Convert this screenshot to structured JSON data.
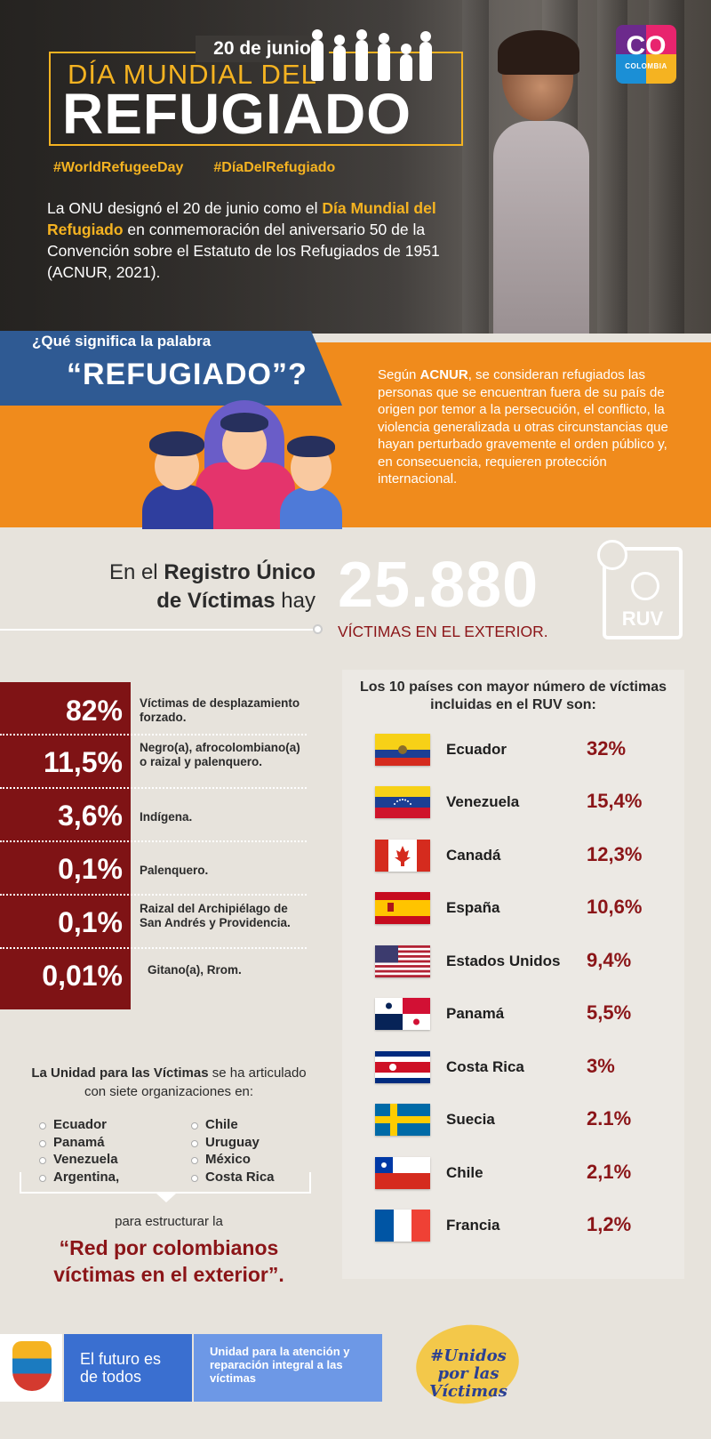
{
  "hero": {
    "date": "20 de junio",
    "title_line1": "DÍA MUNDIAL DEL",
    "title_line2": "REFUGIADO",
    "hashtags": [
      "#WorldRefugeeDay",
      "#DíaDelRefugiado"
    ],
    "intro_pre": "La ONU designó el 20 de junio como el ",
    "intro_bold": "Día Mundial del Refugiado",
    "intro_post": " en conmemoración del aniversario 50 de la Convención sobre el Estatuto de los Refugiados de 1951 (ACNUR, 2021).",
    "logo_text": "CO",
    "logo_sub": "COLOMBIA"
  },
  "definition": {
    "question_line1": "¿Qué significa la palabra",
    "question_line2": "“REFUGIADO”?",
    "text_pre": "Según ",
    "text_bold": "ACNUR",
    "text_post": ", se consideran refugiados las personas que se encuentran fuera de su país de origen por temor a la persecución, el conflicto, la violencia generalizada u otras circunstancias que hayan perturbado gravemente el orden público y, en consecuencia, requieren protección internacional."
  },
  "ruv": {
    "line1_pre": "En el ",
    "line1_bold": "Registro Único",
    "line2_bold": "de Víctimas",
    "line2_post": " hay",
    "number": "25.880",
    "caption": "VÍCTIMAS EN EL EXTERIOR.",
    "icon_label": "RUV"
  },
  "stats": [
    {
      "pct": "82%",
      "desc": "Víctimas de desplazamiento forzado."
    },
    {
      "pct": "11,5%",
      "desc": "Negro(a), afrocolombiano(a) o raizal y palenquero."
    },
    {
      "pct": "3,6%",
      "desc": "Indígena."
    },
    {
      "pct": "0,1%",
      "desc": "Palenquero."
    },
    {
      "pct": "0,1%",
      "desc": "Raizal del Archipiélago de San Andrés y Providencia."
    },
    {
      "pct": "0,01%",
      "desc": "Gitano(a), Rrom."
    }
  ],
  "organizations": {
    "title_bold": "La Unidad para las Víctimas",
    "title_post": " se ha articulado con siete organizaciones en:",
    "col1": [
      "Ecuador",
      "Panamá",
      "Venezuela",
      "Argentina,"
    ],
    "col2": [
      "Chile",
      "Uruguay",
      "México",
      "Costa Rica"
    ],
    "para": "para estructurar la",
    "network": "“Red por colombianos víctimas en el exterior”."
  },
  "countries": {
    "title": "Los 10 países con mayor número de víctimas incluidas en el RUV son:",
    "items": [
      {
        "name": "Ecuador",
        "pct": "32%"
      },
      {
        "name": "Venezuela",
        "pct": "15,4%"
      },
      {
        "name": "Canadá",
        "pct": "12,3%"
      },
      {
        "name": "España",
        "pct": "10,6%"
      },
      {
        "name": "Estados Unidos",
        "pct": "9,4%"
      },
      {
        "name": "Panamá",
        "pct": "5,5%"
      },
      {
        "name": "Costa Rica",
        "pct": "3%"
      },
      {
        "name": "Suecia",
        "pct": "2.1%"
      },
      {
        "name": "Chile",
        "pct": "2,1%"
      },
      {
        "name": "Francia",
        "pct": "1,2%"
      }
    ]
  },
  "footer": {
    "slogan": "El futuro es de todos",
    "unit": "Unidad para la atención y reparación integral a las víctimas",
    "unidos": "#Unidos por las Víctimas"
  },
  "colors": {
    "gold": "#f5b321",
    "orange": "#f08b1c",
    "blue": "#2f5a93",
    "maroon": "#7f1315"
  }
}
